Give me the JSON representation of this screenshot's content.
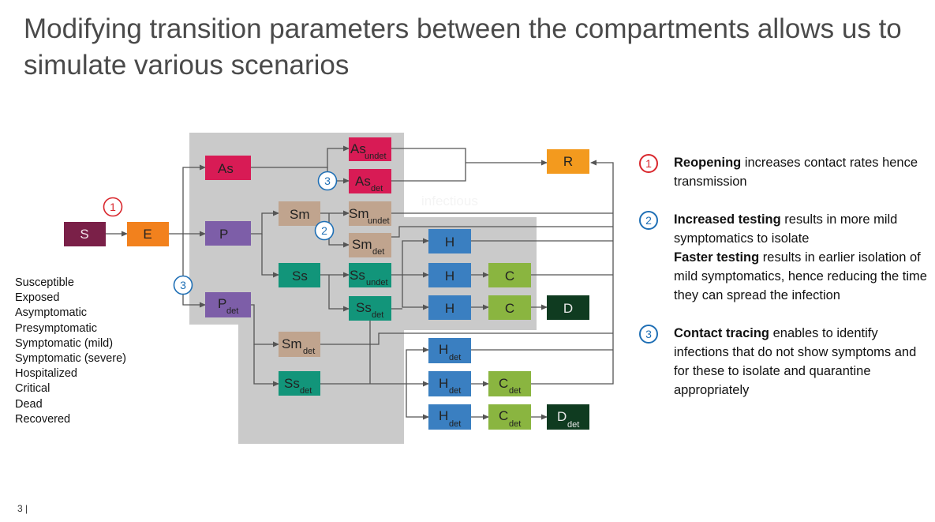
{
  "title": "Modifying transition parameters between the compartments allows us to simulate various scenarios",
  "region_label": "infectious",
  "boxes": {
    "S": "S",
    "E": "E",
    "As": "As",
    "P": "P",
    "P_det": "P",
    "Sm": "Sm",
    "Ss": "Ss",
    "As_undet": "As",
    "As_det": "As",
    "Sm_undet": "Sm",
    "Sm_det": "Sm",
    "Ss_undet": "Ss",
    "Ss_det": "Ss",
    "Sm_det2": "Sm",
    "Ss_det2": "Ss",
    "H1": "H",
    "H2": "H",
    "H3": "H",
    "C1": "C",
    "C2": "C",
    "D": "D",
    "R": "R",
    "H_det1": "H",
    "H_det2": "H",
    "H_det3": "H",
    "C_det1": "C",
    "C_det2": "C",
    "D_det": "D"
  },
  "subscripts": {
    "det": "det",
    "undet": "undet"
  },
  "markers": {
    "one": "1",
    "two": "2",
    "three": "3"
  },
  "colors": {
    "S": "#7a2048",
    "E": "#f2811d",
    "As": "#d81b55",
    "P": "#7d5ea8",
    "Sm": "#c0a48e",
    "Ss": "#12957a",
    "H": "#3a7fc1",
    "C": "#8ab540",
    "D": "#0f3b20",
    "R": "#f39a1e",
    "infectious_region": "#cacaca",
    "marker_red": "#d9262c",
    "marker_blue": "#1f6fb5"
  },
  "legend": [
    "Susceptible",
    "Exposed",
    "Asymptomatic",
    "Presymptomatic",
    "Symptomatic (mild)",
    "Symptomatic (severe)",
    "Hospitalized",
    "Critical",
    "Dead",
    "Recovered"
  ],
  "notes": [
    {
      "num": "1",
      "bold": "Reopening",
      "text": " increases contact rates hence transmission"
    },
    {
      "num": "2",
      "bold": "Increased testing",
      "text": " results in more mild symptomatics to isolate",
      "bold2": "Faster testing",
      "text2": " results in earlier isolation of mild symptomatics, hence reducing the time they can spread the infection"
    },
    {
      "num": "3",
      "bold": "Contact tracing",
      "text": " enables to identify infections that do not show symptoms and for these to isolate and quarantine appropriately"
    }
  ],
  "footer": "3 |"
}
